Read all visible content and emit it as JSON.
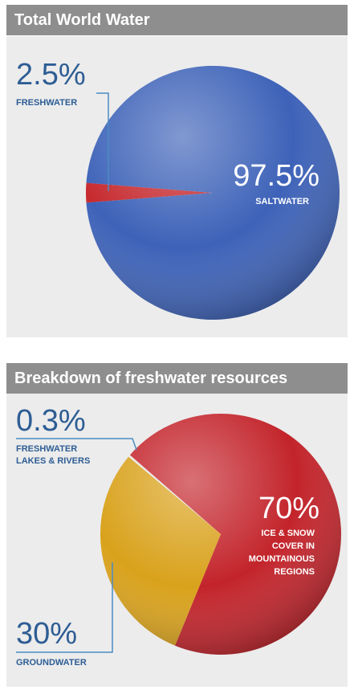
{
  "chart_data": [
    {
      "type": "pie",
      "title": "Total World Water",
      "categories": [
        "FRESHWATER",
        "SALTWATER"
      ],
      "values": [
        2.5,
        97.5
      ],
      "value_labels": [
        "2.5%",
        "97.5%"
      ],
      "colors": [
        "#c62a2f",
        "#3d62b8"
      ]
    },
    {
      "type": "pie",
      "title": "Breakdown of freshwater resources",
      "categories": [
        "FRESHWATER LAKES & RIVERS",
        "ICE & SNOW COVER IN MOUNTAINOUS REGIONS",
        "GROUNDWATER"
      ],
      "values": [
        0.3,
        70,
        30
      ],
      "value_labels": [
        "0.3%",
        "70%",
        "30%"
      ],
      "colors": [
        "#e8e8e8",
        "#c3242b",
        "#d9a21c"
      ]
    }
  ]
}
